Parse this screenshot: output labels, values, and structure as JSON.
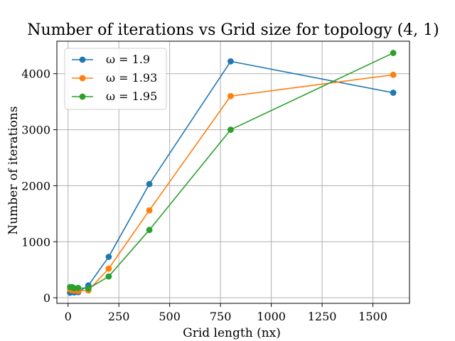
{
  "chart_data": {
    "type": "line",
    "title": "Number of iterations vs Grid size for topology (4, 1)",
    "xlabel": "Grid length (nx)",
    "ylabel": "Number of iterations",
    "xlim": [
      -55,
      1680
    ],
    "ylim": [
      -100,
      4580
    ],
    "x_ticks": [
      0,
      250,
      500,
      750,
      1000,
      1250,
      1500
    ],
    "y_ticks": [
      0,
      1000,
      2000,
      3000,
      4000
    ],
    "grid": true,
    "legend_position": "top-left",
    "series": [
      {
        "name": "ω = 1.9",
        "color": "#1f77b4",
        "x": [
          10,
          20,
          30,
          50,
          100,
          200,
          400,
          800,
          1600
        ],
        "y": [
          90,
          105,
          95,
          100,
          220,
          730,
          2030,
          4220,
          3660
        ]
      },
      {
        "name": "ω = 1.93",
        "color": "#ff7f0e",
        "x": [
          10,
          20,
          30,
          50,
          100,
          200,
          400,
          800,
          1600
        ],
        "y": [
          150,
          135,
          130,
          120,
          130,
          520,
          1560,
          3600,
          3980
        ]
      },
      {
        "name": "ω = 1.95",
        "color": "#2ca02c",
        "x": [
          10,
          20,
          30,
          50,
          100,
          200,
          400,
          800,
          1600
        ],
        "y": [
          190,
          190,
          170,
          175,
          165,
          380,
          1210,
          3000,
          4370
        ]
      }
    ]
  }
}
